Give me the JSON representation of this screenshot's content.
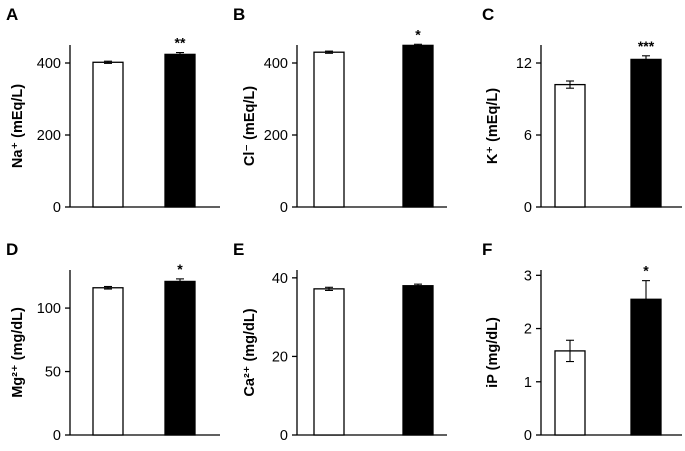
{
  "chart_data": [
    {
      "panel": "A",
      "type": "bar",
      "ylabel": "Na⁺ (mEq/L)",
      "categories": [
        "",
        ""
      ],
      "values": [
        402,
        424
      ],
      "errors": [
        3,
        5
      ],
      "fill": [
        "#ffffff",
        "#000000"
      ],
      "ylim": [
        0,
        450
      ],
      "yticks": [
        "0",
        "200",
        "400"
      ],
      "significance": "**"
    },
    {
      "panel": "B",
      "type": "bar",
      "ylabel": "Cl⁻ (mEq/L)",
      "categories": [
        "",
        ""
      ],
      "values": [
        430,
        449
      ],
      "errors": [
        3,
        3
      ],
      "fill": [
        "#ffffff",
        "#000000"
      ],
      "ylim": [
        0,
        450
      ],
      "yticks": [
        "0",
        "200",
        "400"
      ],
      "significance": "*"
    },
    {
      "panel": "C",
      "type": "bar",
      "ylabel": "K⁺ (mEq/L)",
      "categories": [
        "",
        ""
      ],
      "values": [
        10.2,
        12.3
      ],
      "errors": [
        0.3,
        0.3
      ],
      "fill": [
        "#ffffff",
        "#000000"
      ],
      "ylim": [
        0,
        13.5
      ],
      "yticks": [
        "0",
        "6",
        "12"
      ],
      "significance": "***"
    },
    {
      "panel": "D",
      "type": "bar",
      "ylabel": "Mg²⁺ (mg/dL)",
      "categories": [
        "",
        ""
      ],
      "values": [
        116,
        121
      ],
      "errors": [
        1,
        2
      ],
      "fill": [
        "#ffffff",
        "#000000"
      ],
      "ylim": [
        0,
        130
      ],
      "yticks": [
        "0",
        "50",
        "100"
      ],
      "significance": "*"
    },
    {
      "panel": "E",
      "type": "bar",
      "ylabel": "Ca²⁺ (mg/dL)",
      "categories": [
        "",
        ""
      ],
      "values": [
        37.2,
        38.0
      ],
      "errors": [
        0.4,
        0.4
      ],
      "fill": [
        "#ffffff",
        "#000000"
      ],
      "ylim": [
        0,
        42
      ],
      "yticks": [
        "0",
        "20",
        "40"
      ],
      "significance": ""
    },
    {
      "panel": "F",
      "type": "bar",
      "ylabel": "iP (mg/dL)",
      "categories": [
        "",
        ""
      ],
      "values": [
        1.58,
        2.55
      ],
      "errors": [
        0.2,
        0.35
      ],
      "fill": [
        "#ffffff",
        "#000000"
      ],
      "ylim": [
        0,
        3.1
      ],
      "yticks": [
        "0",
        "1",
        "2",
        "3"
      ],
      "significance": "*"
    }
  ]
}
